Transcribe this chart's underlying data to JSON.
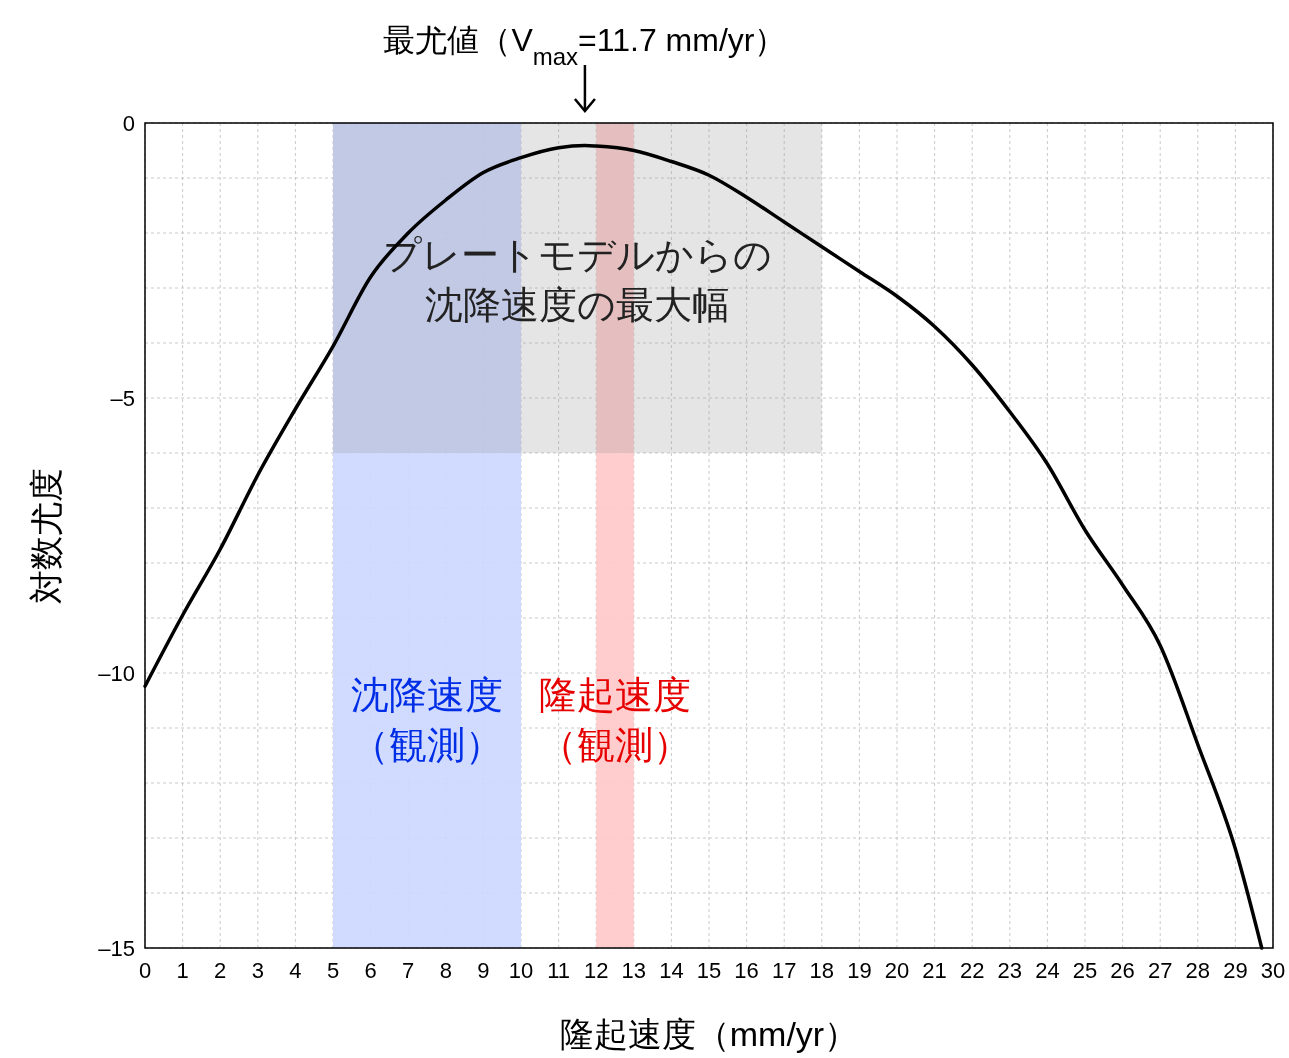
{
  "chart_data": {
    "type": "line",
    "xlabel": "隆起速度（mm/yr）",
    "ylabel": "対数尤度",
    "annotations": [
      {
        "text": "最尤値（V$_{max}$=11.7 mm/yr）",
        "x": 11.7,
        "y": 0
      }
    ],
    "x": [
      0,
      1,
      2,
      3,
      4,
      5,
      6,
      7,
      8,
      9,
      10,
      11,
      11.7,
      12,
      13,
      14,
      15,
      16,
      17,
      18,
      19,
      20,
      21,
      22,
      23,
      24,
      25,
      26,
      27,
      28,
      29,
      29.7
    ],
    "series": [
      {
        "type": "area",
        "name": "プレートモデルからの沈降速度の最大幅",
        "color": "#999999",
        "x": [
          5,
          18
        ],
        "values": [
          -6,
          -6
        ]
      },
      {
        "color": "#000000",
        "values": [
          -10.24,
          -8.95,
          -7.75,
          -6.4,
          -5.2,
          -4.06,
          -2.8,
          -2.0,
          -1.4,
          -0.9,
          -0.63,
          -0.45,
          -0.41,
          -0.42,
          -0.5,
          -0.7,
          -0.95,
          -1.35,
          -1.8,
          -2.25,
          -2.7,
          -3.15,
          -3.7,
          -4.4,
          -5.25,
          -6.2,
          -7.4,
          -8.4,
          -9.5,
          -11.3,
          -13.2,
          -15
        ]
      }
    ],
    "xlim": [
      0,
      30
    ],
    "xticks": [
      0,
      1,
      2,
      3,
      4,
      5,
      6,
      7,
      8,
      9,
      10,
      11,
      12,
      13,
      14,
      15,
      16,
      17,
      18,
      19,
      20,
      21,
      22,
      23,
      24,
      25,
      26,
      27,
      28,
      29,
      30
    ],
    "ylim": [
      -15,
      0
    ],
    "yticks": [
      {
        "value": 0,
        "label": "0"
      },
      {
        "value": -1,
        "label": null
      },
      {
        "value": -2,
        "label": null
      },
      {
        "value": -3,
        "label": null
      },
      {
        "value": -4,
        "label": null
      },
      {
        "value": -5,
        "label": "–5"
      },
      {
        "value": -6,
        "label": null
      },
      {
        "value": -7,
        "label": null
      },
      {
        "value": -8,
        "label": null
      },
      {
        "value": -9,
        "label": null
      },
      {
        "value": -10,
        "label": "–10"
      },
      {
        "value": -11,
        "label": null
      },
      {
        "value": -12,
        "label": null
      },
      {
        "value": -13,
        "label": null
      },
      {
        "value": -14,
        "label": null
      },
      {
        "value": -15,
        "label": "–15"
      }
    ],
    "grid": true,
    "marker": "none",
    "line_style": "solid",
    "bands": [
      {
        "axis": "x",
        "from": 5,
        "to": 10,
        "label": "沈降速度（観測）",
        "color": "#ccd6ff"
      },
      {
        "axis": "x",
        "from": 12,
        "to": 13,
        "label": "隆起速度（観測）",
        "color": "#ffc8c8"
      }
    ]
  }
}
